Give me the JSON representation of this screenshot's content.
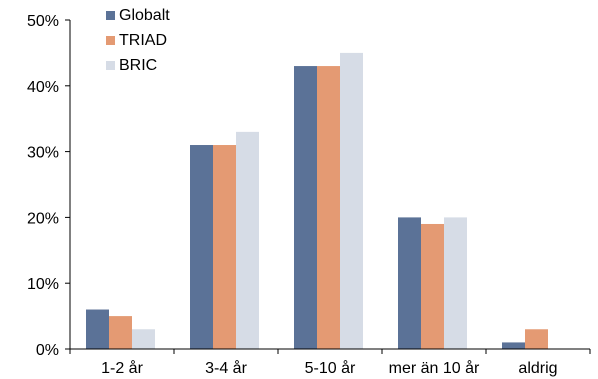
{
  "chart_data": {
    "type": "bar",
    "categories": [
      "1-2 år",
      "3-4 år",
      "5-10 år",
      "mer än 10 år",
      "aldrig"
    ],
    "series": [
      {
        "name": "Globalt",
        "values": [
          6,
          31,
          43,
          20,
          1
        ],
        "color": "#5b7297"
      },
      {
        "name": "TRIAD",
        "values": [
          5,
          31,
          43,
          19,
          3
        ],
        "color": "#e49a73"
      },
      {
        "name": "BRIC",
        "values": [
          3,
          33,
          45,
          20,
          0
        ],
        "color": "#d6dce6"
      }
    ],
    "ylim": [
      0,
      50
    ],
    "yticks": [
      0,
      10,
      20,
      30,
      40,
      50
    ],
    "ytick_labels": [
      "0%",
      "10%",
      "20%",
      "30%",
      "40%",
      "50%"
    ],
    "grid": false,
    "legend_position": "top-left",
    "title": "",
    "xlabel": "",
    "ylabel": ""
  }
}
